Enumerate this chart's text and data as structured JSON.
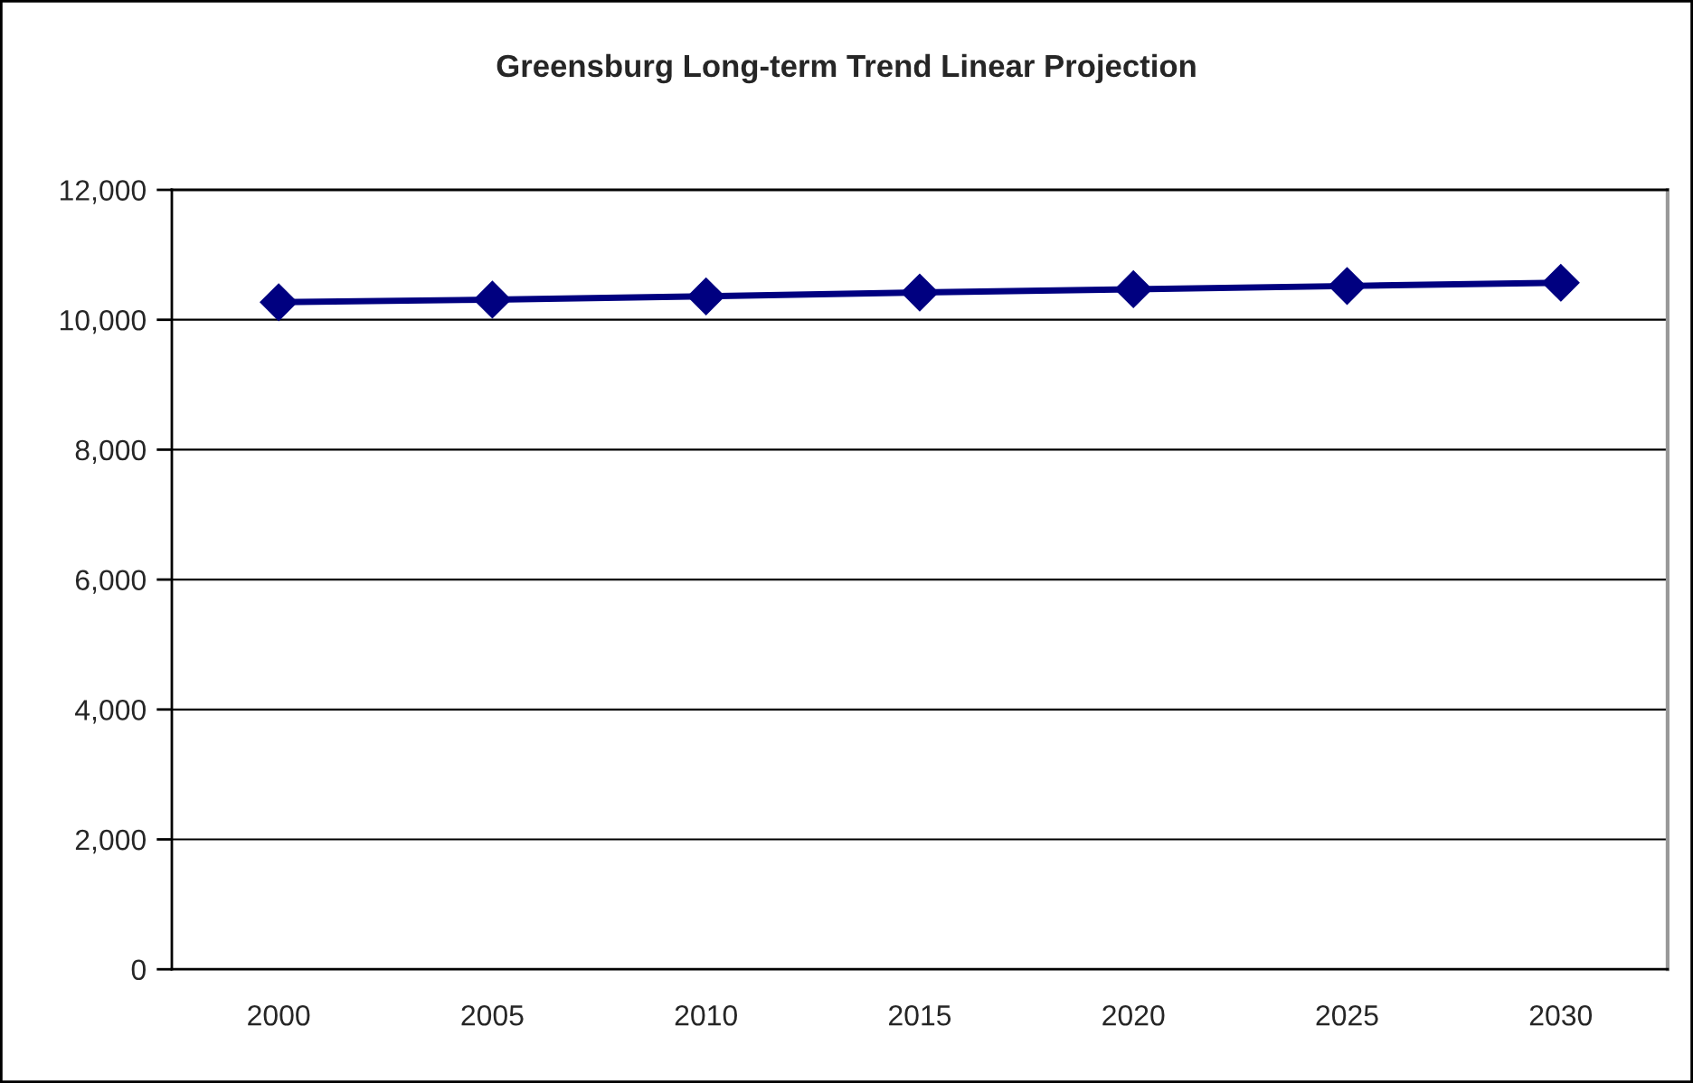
{
  "chart_data": {
    "type": "line",
    "title": "Greensburg Long-term Trend Linear Projection",
    "categories": [
      "2000",
      "2005",
      "2010",
      "2015",
      "2020",
      "2025",
      "2030"
    ],
    "series": [
      {
        "color": "#000080",
        "values": [
          10270,
          10310,
          10360,
          10420,
          10470,
          10520,
          10570
        ]
      }
    ],
    "ylim": [
      0,
      12000
    ],
    "yticks": [
      0,
      {
        "value": 2000,
        "label": "2,000"
      },
      {
        "value": 4000,
        "label": "4,000"
      },
      {
        "value": 6000,
        "label": "6,000"
      },
      {
        "value": 8000,
        "label": "8,000"
      },
      {
        "value": 10000,
        "label": "10,000"
      },
      {
        "value": 12000,
        "label": "12,000"
      }
    ],
    "grid": "y",
    "marker": "diamond",
    "line_style": "solid"
  }
}
